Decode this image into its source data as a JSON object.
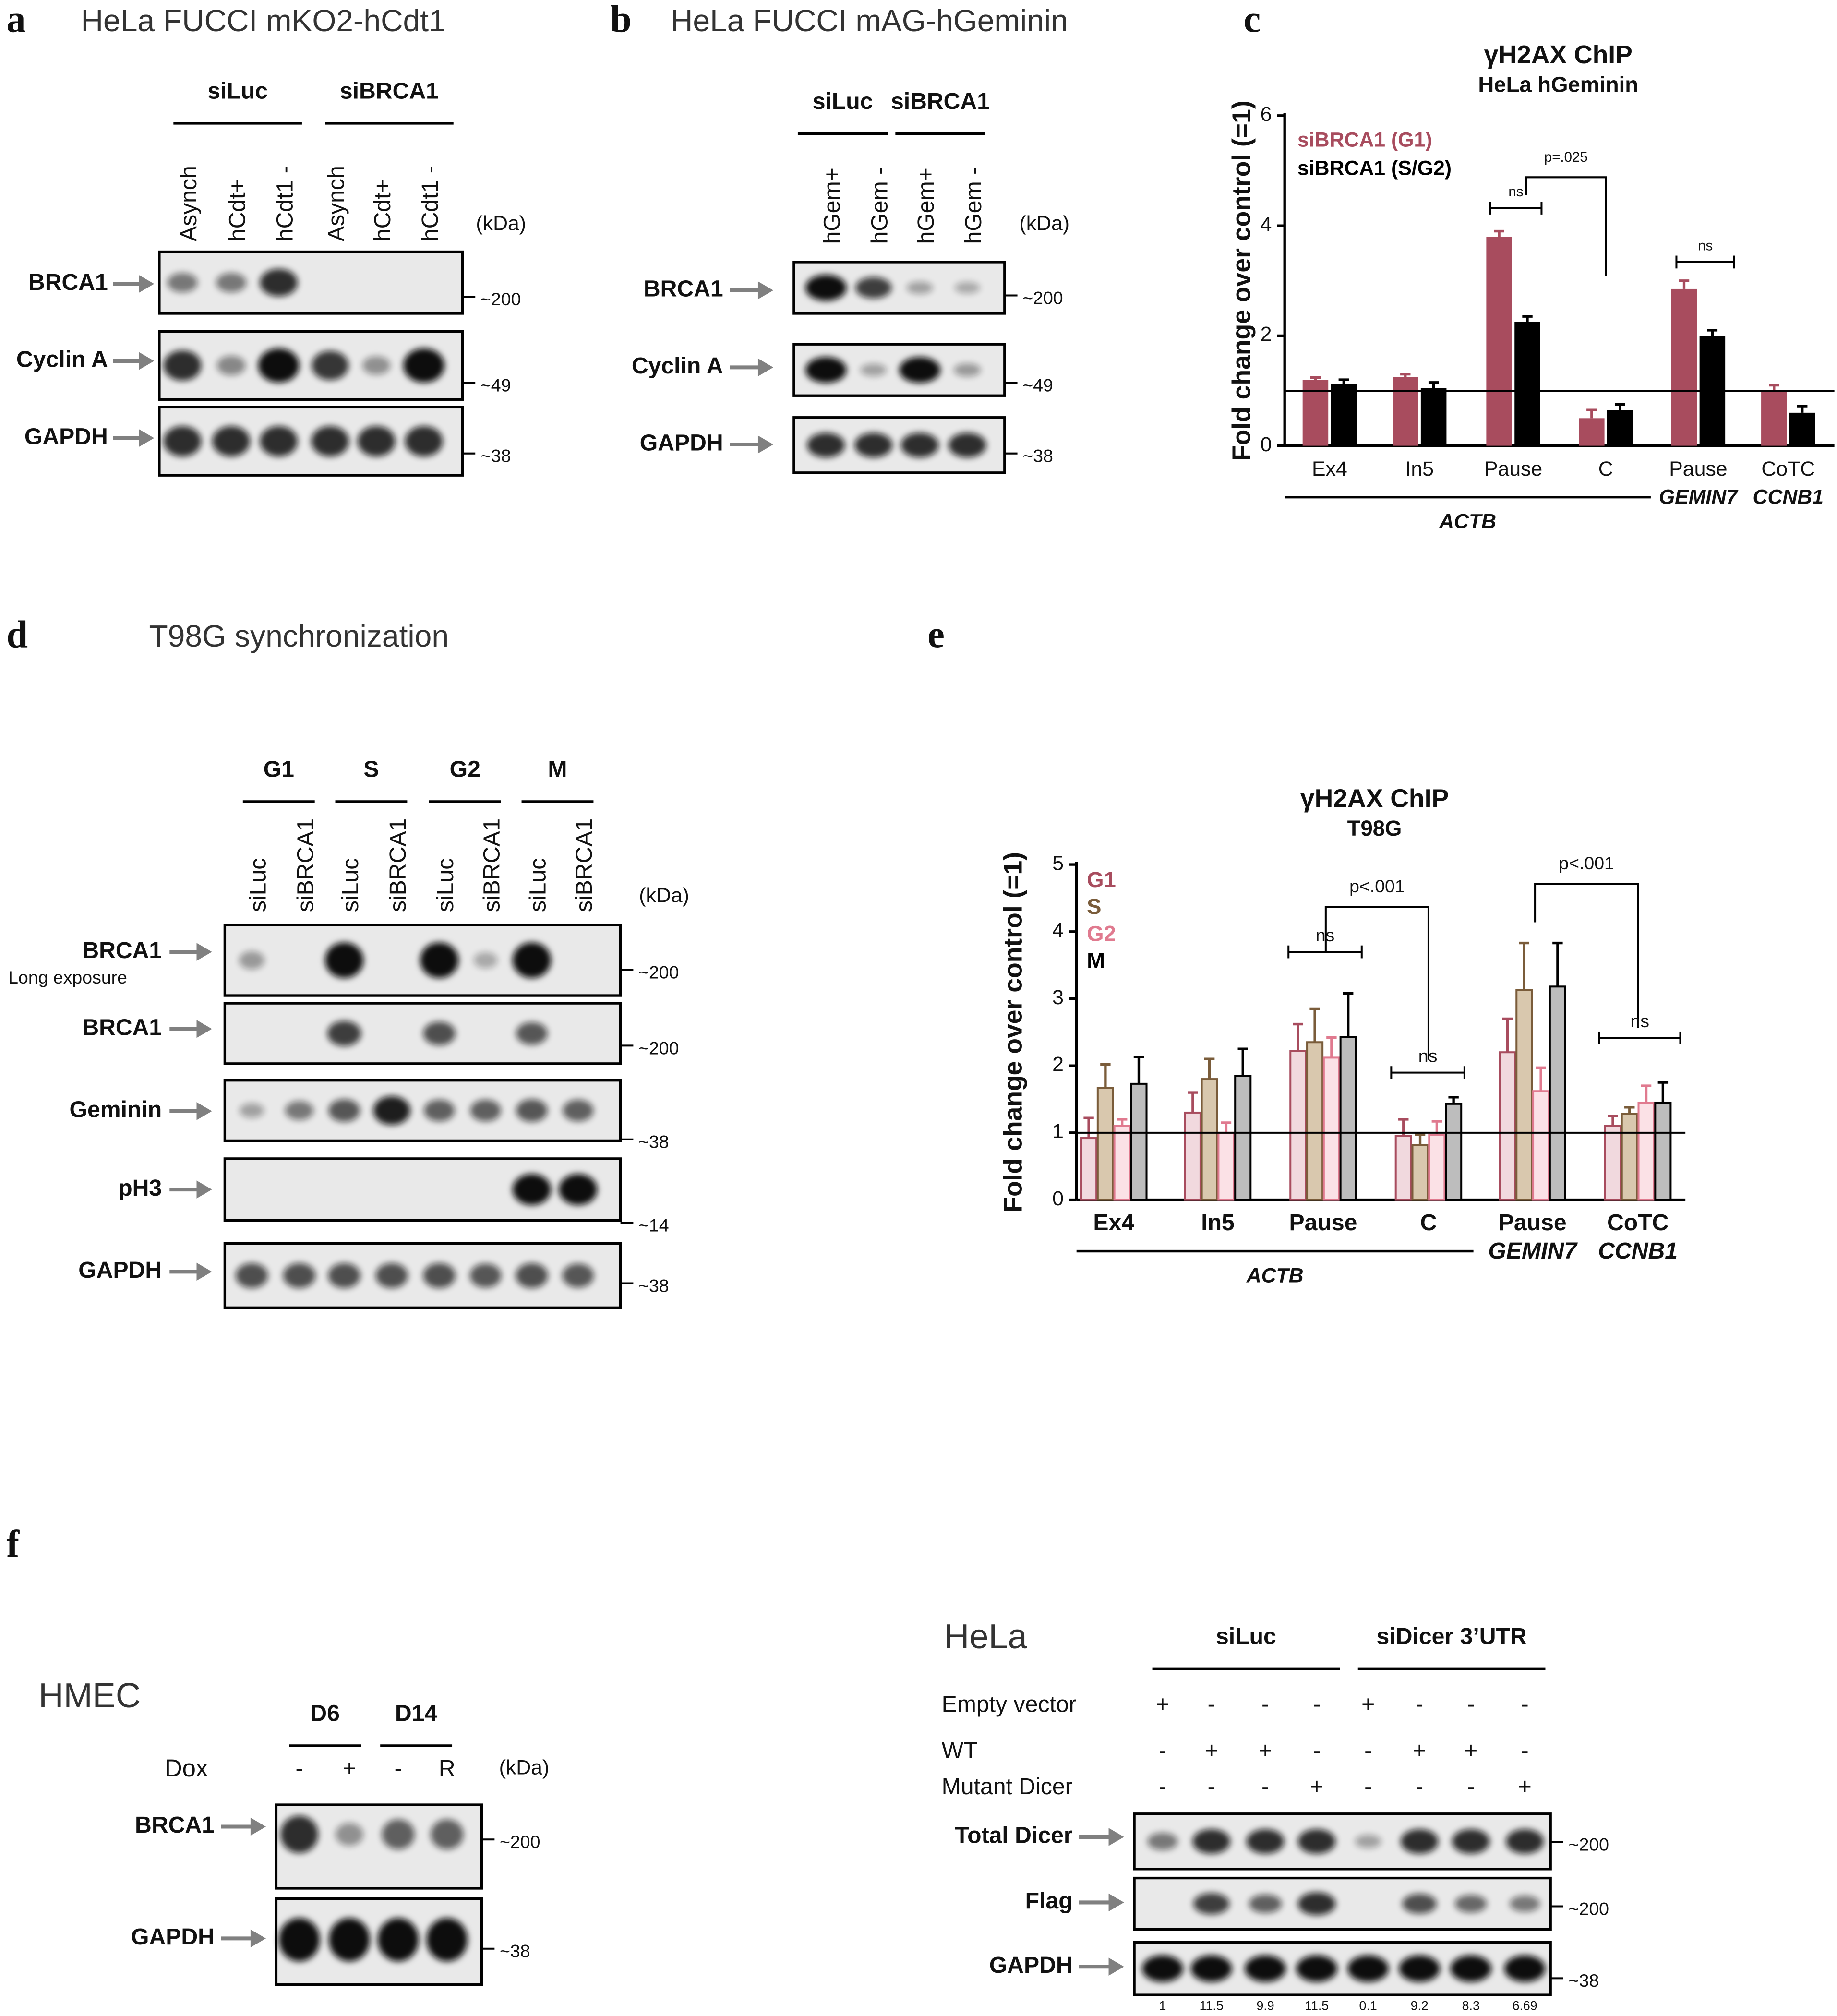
{
  "panel_labels": [
    "a",
    "b",
    "c",
    "d",
    "e",
    "f"
  ],
  "blot_a": {
    "title": "HeLa FUCCI mKO2-hCdt1",
    "groups": [
      "siLuc",
      "siBRCA1"
    ],
    "lanes": [
      "Asynch",
      "hCdt+",
      "hCdt1 -",
      "Asynch",
      "hCdt+",
      "hCdt1 -"
    ],
    "unit": "(kDa)",
    "rows": [
      "BRCA1",
      "Cyclin A",
      "GAPDH"
    ],
    "sizes": [
      "~200",
      "~49",
      "~38"
    ]
  },
  "blot_b": {
    "title": "HeLa FUCCI mAG-hGeminin",
    "groups": [
      "siLuc",
      "siBRCA1"
    ],
    "lanes": [
      "hGem+",
      "hGem -",
      "hGem+",
      "hGem -"
    ],
    "unit": "(kDa)",
    "rows": [
      "BRCA1",
      "Cyclin A",
      "GAPDH"
    ],
    "sizes": [
      "~200",
      "~49",
      "~38"
    ]
  },
  "blot_d": {
    "title": "T98G synchronization",
    "groups": [
      "G1",
      "S",
      "G2",
      "M"
    ],
    "lanes": [
      "siLuc",
      "siBRCA1",
      "siLuc",
      "siBRCA1",
      "siLuc",
      "siBRCA1",
      "siLuc",
      "siBRCA1"
    ],
    "unit": "(kDa)",
    "rows": [
      "BRCA1",
      "BRCA1",
      "Geminin",
      "pH3",
      "GAPDH"
    ],
    "row_note": "Long exposure",
    "sizes": [
      "~200",
      "~200",
      "~38",
      "~14",
      "~38"
    ]
  },
  "blot_f_hmec": {
    "title": "HMEC",
    "groups": [
      "D6",
      "D14"
    ],
    "condition": "Dox",
    "lanes": [
      "-",
      "+",
      "-",
      "R"
    ],
    "unit": "(kDa)",
    "rows": [
      "BRCA1",
      "GAPDH"
    ],
    "sizes": [
      "~200",
      "~38"
    ]
  },
  "blot_f_hela": {
    "title": "HeLa",
    "groups": [
      "siLuc",
      "siDicer 3’UTR"
    ],
    "conditions": [
      {
        "name": "Empty vector",
        "marks": [
          "+",
          "-",
          "-",
          "-",
          "+",
          "-",
          "-",
          "-"
        ]
      },
      {
        "name": "WT",
        "marks": [
          "-",
          "+",
          "+",
          "-",
          "-",
          "+",
          "+",
          "-"
        ]
      },
      {
        "name": "Mutant Dicer",
        "marks": [
          "-",
          "-",
          "-",
          "+",
          "-",
          "-",
          "-",
          "+"
        ]
      }
    ],
    "rows": [
      "Total Dicer",
      "Flag",
      "GAPDH"
    ],
    "sizes": [
      "~200",
      "~200",
      "~38"
    ],
    "quantification": [
      1,
      11.5,
      9.9,
      11.5,
      0.1,
      9.2,
      8.3,
      6.69
    ]
  },
  "chart_data": [
    {
      "type": "bar",
      "title": "γH2AX ChIP",
      "subtitle": "HeLa hGeminin",
      "ylabel": "Fold change over control (=1)",
      "categories": [
        "Ex4",
        "In5",
        "Pause",
        "C",
        "Pause",
        "CoTC"
      ],
      "group_labels": [
        "ACTB",
        "GEMIN7",
        "CCNB1"
      ],
      "ylim": [
        0,
        6
      ],
      "yticks": [
        0,
        2,
        4,
        6
      ],
      "ref_line": 1,
      "series": [
        {
          "name": "siBRCA1 (G1)",
          "color": "#a84c5e",
          "values": [
            1.2,
            1.25,
            3.8,
            0.5,
            2.85,
            1.0
          ],
          "errors": [
            0.04,
            0.05,
            0.1,
            0.15,
            0.15,
            0.1
          ]
        },
        {
          "name": "siBRCA1 (S/G2)",
          "color": "#000000",
          "values": [
            1.12,
            1.05,
            2.25,
            0.65,
            2.0,
            0.6
          ],
          "errors": [
            0.08,
            0.1,
            0.1,
            0.1,
            0.1,
            0.12
          ]
        }
      ],
      "annotations": [
        "ns",
        "p=.025",
        "ns"
      ]
    },
    {
      "type": "bar",
      "title": "γH2AX ChIP",
      "subtitle": "T98G",
      "ylabel": "Fold change over control (=1)",
      "categories": [
        "Ex4",
        "In5",
        "Pause",
        "C",
        "Pause",
        "CoTC"
      ],
      "group_labels": [
        "ACTB",
        "GEMIN7",
        "CCNB1"
      ],
      "ylim": [
        0,
        5
      ],
      "yticks": [
        0,
        1,
        2,
        3,
        4,
        5
      ],
      "ref_line": 1,
      "series": [
        {
          "name": "G1",
          "color": "#a84c5e",
          "fill": "#f1d9de",
          "values": [
            0.92,
            1.3,
            2.22,
            0.95,
            2.2,
            1.1
          ],
          "errors": [
            0.3,
            0.3,
            0.4,
            0.25,
            0.5,
            0.15
          ]
        },
        {
          "name": "S",
          "color": "#7a5c3a",
          "fill": "#d9c8ae",
          "values": [
            1.67,
            1.8,
            2.35,
            0.82,
            3.13,
            1.28
          ],
          "errors": [
            0.35,
            0.3,
            0.5,
            0.15,
            0.7,
            0.1
          ]
        },
        {
          "name": "G2",
          "color": "#e07a8f",
          "fill": "#fbe1e6",
          "values": [
            1.1,
            1.0,
            2.12,
            0.97,
            1.62,
            1.45
          ],
          "errors": [
            0.1,
            0.15,
            0.3,
            0.2,
            0.35,
            0.25
          ]
        },
        {
          "name": "M",
          "color": "#000000",
          "fill": "#bdbdbd",
          "values": [
            1.73,
            1.85,
            2.43,
            1.43,
            3.18,
            1.45
          ],
          "errors": [
            0.4,
            0.4,
            0.65,
            0.1,
            0.65,
            0.3
          ]
        }
      ],
      "annotations": [
        "ns",
        "p<.001",
        "ns",
        "p<.001",
        "ns"
      ]
    }
  ]
}
